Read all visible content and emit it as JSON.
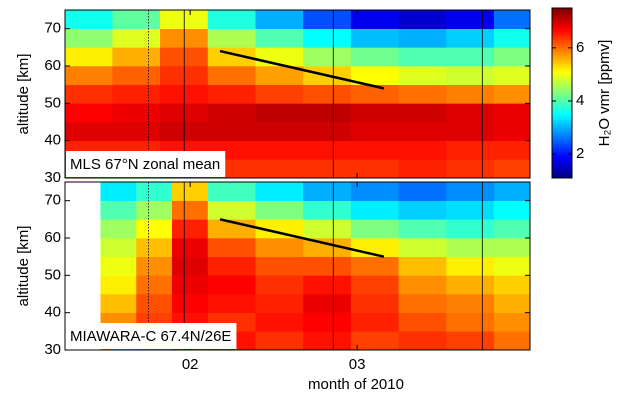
{
  "chart_data": {
    "type": "heatmap",
    "colormap": "jet",
    "xlabel": "month of 2010",
    "xlim": [
      11,
      89
    ],
    "xticks": [
      {
        "value": 32,
        "label": "02"
      },
      {
        "value": 60,
        "label": "03"
      }
    ],
    "colorbar": {
      "label": "H₂O vmr [ppmv]",
      "clim": [
        1.1,
        7.5
      ],
      "ticks": [
        2,
        4,
        6
      ]
    },
    "event_lines": [
      {
        "x": 25,
        "style": "dotted"
      },
      {
        "x": 31,
        "style": "solid"
      },
      {
        "x": 56,
        "style": "solid"
      },
      {
        "x": 81,
        "style": "solid"
      }
    ],
    "panels": [
      {
        "title": "MLS 67°N zonal mean",
        "ylabel": "altitude [km]",
        "ylim": [
          30,
          75
        ],
        "yticks": [
          30,
          40,
          50,
          60,
          70
        ],
        "x": [
          11,
          19,
          27,
          35,
          43,
          51,
          59,
          67,
          75,
          83,
          89
        ],
        "y": [
          30,
          35,
          40,
          45,
          50,
          55,
          60,
          65,
          70,
          75
        ],
        "values": [
          [
            6.3,
            6.3,
            6.4,
            6.4,
            6.4,
            6.4,
            6.4,
            6.5,
            6.4,
            6.3
          ],
          [
            6.5,
            6.5,
            6.6,
            6.6,
            6.6,
            6.6,
            6.6,
            6.6,
            6.5,
            6.5
          ],
          [
            6.9,
            6.9,
            7.0,
            7.0,
            7.0,
            7.0,
            6.9,
            6.9,
            6.9,
            6.8
          ],
          [
            6.7,
            6.8,
            6.9,
            7.0,
            7.1,
            7.1,
            7.0,
            7.0,
            6.9,
            6.8
          ],
          [
            6.4,
            6.5,
            6.6,
            6.5,
            6.3,
            6.2,
            6.1,
            6.0,
            5.9,
            5.8
          ],
          [
            5.9,
            6.1,
            6.4,
            6.0,
            5.7,
            5.4,
            5.1,
            4.9,
            4.8,
            4.9
          ],
          [
            5.2,
            5.6,
            6.2,
            5.4,
            5.0,
            4.5,
            4.2,
            4.0,
            4.0,
            4.3
          ],
          [
            4.4,
            4.9,
            5.8,
            4.6,
            4.0,
            3.5,
            3.1,
            3.0,
            3.2,
            3.6
          ],
          [
            3.6,
            4.1,
            5.0,
            3.7,
            3.0,
            2.4,
            1.8,
            1.6,
            1.8,
            2.6
          ]
        ],
        "trend_line": {
          "x": [
            37,
            64.5
          ],
          "y": [
            64,
            54
          ]
        }
      },
      {
        "title": "MIAWARA-C 67.4N/26E",
        "ylabel": "altitude [km]",
        "ylim": [
          30,
          75
        ],
        "yticks": [
          30,
          40,
          50,
          60,
          70
        ],
        "x": [
          17,
          23,
          29,
          35,
          43,
          51,
          59,
          67,
          75,
          83,
          89
        ],
        "y": [
          30,
          35,
          40,
          45,
          50,
          55,
          60,
          65,
          70,
          75
        ],
        "values": [
          [
            6.0,
            6.2,
            6.5,
            6.6,
            6.4,
            6.6,
            6.3,
            6.4,
            6.3,
            6.0
          ],
          [
            5.8,
            6.3,
            6.6,
            6.4,
            6.6,
            6.7,
            6.5,
            6.2,
            6.0,
            5.8
          ],
          [
            5.5,
            6.2,
            6.7,
            6.6,
            6.5,
            6.8,
            6.4,
            6.0,
            5.9,
            5.6
          ],
          [
            5.2,
            6.0,
            6.8,
            6.7,
            6.4,
            6.6,
            6.3,
            5.8,
            5.6,
            5.4
          ],
          [
            5.0,
            5.8,
            6.9,
            6.5,
            6.2,
            6.2,
            6.0,
            5.5,
            5.2,
            5.0
          ],
          [
            4.8,
            5.5,
            6.8,
            6.2,
            5.8,
            5.6,
            5.2,
            4.8,
            4.6,
            4.6
          ],
          [
            4.5,
            5.1,
            6.5,
            5.6,
            5.2,
            4.8,
            4.3,
            4.0,
            3.8,
            4.0
          ],
          [
            4.0,
            4.5,
            6.0,
            4.8,
            4.3,
            3.8,
            3.4,
            3.2,
            3.3,
            3.5
          ],
          [
            3.4,
            3.8,
            5.4,
            3.9,
            3.4,
            3.0,
            2.8,
            2.6,
            2.8,
            3.0
          ]
        ],
        "trend_line": {
          "x": [
            37,
            64.5
          ],
          "y": [
            65,
            55
          ]
        }
      }
    ]
  }
}
